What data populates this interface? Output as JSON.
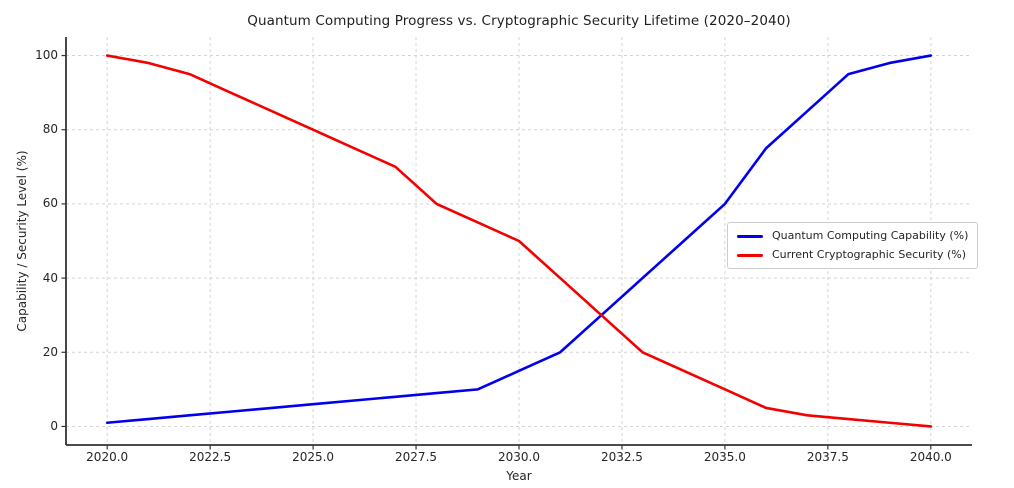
{
  "figure": {
    "title": "Quantum Computing Progress vs. Cryptographic Security Lifetime (2020–2040)",
    "xlabel": "Year",
    "ylabel": "Capability / Security Level (%)"
  },
  "chart_data": {
    "type": "line",
    "title": "Quantum Computing Progress vs. Cryptographic Security Lifetime (2020–2040)",
    "xlabel": "Year",
    "ylabel": "Capability / Security Level (%)",
    "x": [
      2020,
      2021,
      2022,
      2023,
      2024,
      2025,
      2026,
      2027,
      2028,
      2029,
      2030,
      2031,
      2032,
      2033,
      2034,
      2035,
      2036,
      2037,
      2038,
      2039,
      2040
    ],
    "series": [
      {
        "name": "Quantum Computing Capability (%)",
        "color": "#0000ee",
        "values": [
          1,
          2,
          3,
          4,
          5,
          6,
          7,
          8,
          9,
          10,
          15,
          20,
          30,
          40,
          50,
          60,
          75,
          85,
          95,
          98,
          100
        ]
      },
      {
        "name": "Current Cryptographic Security (%)",
        "color": "#f40000",
        "values": [
          100,
          98,
          95,
          90,
          85,
          80,
          75,
          70,
          60,
          55,
          50,
          40,
          30,
          20,
          15,
          10,
          5,
          3,
          2,
          1,
          0
        ]
      }
    ],
    "xlim": [
      2019,
      2041
    ],
    "ylim": [
      -5,
      105
    ],
    "xticks": [
      2020.0,
      2022.5,
      2025.0,
      2027.5,
      2030.0,
      2032.5,
      2035.0,
      2037.5,
      2040.0
    ],
    "xtick_labels": [
      "2020.0",
      "2022.5",
      "2025.0",
      "2027.5",
      "2030.0",
      "2032.5",
      "2035.0",
      "2037.5",
      "2040.0"
    ],
    "yticks": [
      0,
      20,
      40,
      60,
      80,
      100
    ],
    "ytick_labels": [
      "0",
      "20",
      "40",
      "60",
      "80",
      "100"
    ],
    "grid": true,
    "grid_style": "dashed",
    "legend_position": "center right",
    "crossing_point": {
      "x": 2032,
      "y": 30
    }
  },
  "palette": {
    "background": "#ffffff",
    "grid": "#d4d4d4",
    "spine": "#333333",
    "text": "#262626",
    "legend_border": "#cccccc"
  }
}
